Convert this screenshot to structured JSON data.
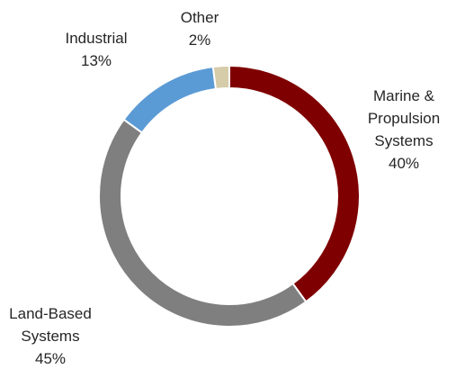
{
  "chart_data": {
    "type": "pie",
    "style": "donut",
    "slices": [
      {
        "name": "Marine & Propulsion Systems",
        "name_lines": [
          "Marine &",
          "Propulsion",
          "Systems"
        ],
        "value": 40,
        "value_label": "40%",
        "color": "#7f0000"
      },
      {
        "name": "Land-Based Systems",
        "name_lines": [
          "Land-Based",
          "Systems"
        ],
        "value": 45,
        "value_label": "45%",
        "color": "#7f7f7f"
      },
      {
        "name": "Industrial",
        "name_lines": [
          "Industrial"
        ],
        "value": 13,
        "value_label": "13%",
        "color": "#5b9bd5"
      },
      {
        "name": "Other",
        "name_lines": [
          "Other"
        ],
        "value": 2,
        "value_label": "2%",
        "color": "#d6ccaa"
      }
    ],
    "start_angle_deg": 0,
    "direction": "clockwise",
    "separator_color": "#ffffff",
    "legend": "none"
  }
}
